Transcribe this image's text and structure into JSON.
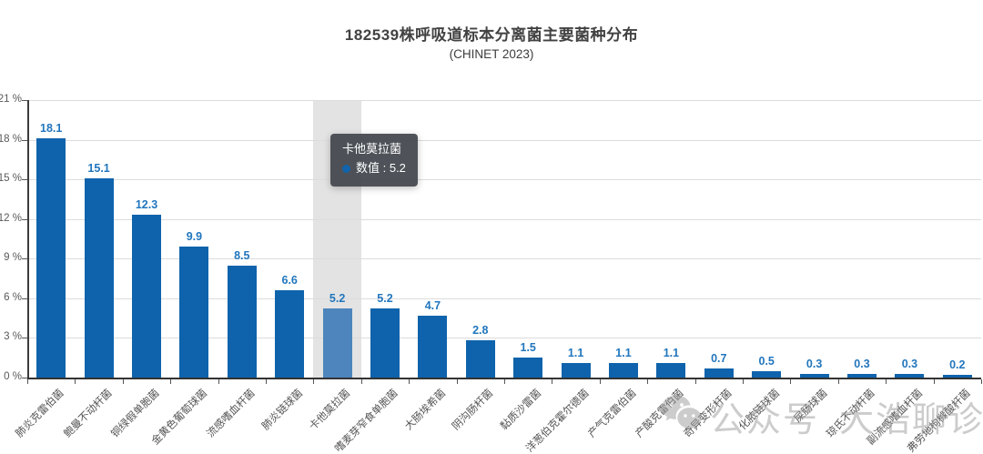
{
  "header": {
    "title": "182539株呼吸道标本分离菌主要菌种分布",
    "subtitle": "(CHINET 2023)"
  },
  "tooltip": {
    "category": "卡他莫拉菌",
    "value_line": "数值 : 5.2"
  },
  "watermark": {
    "badge": "公众号",
    "name": "大浩聊诊断"
  },
  "colors": {
    "bar": "#0f63ac",
    "bar_highlight": "#4d85bc",
    "band": "#e3e3e3",
    "value_label": "#2176bd",
    "tooltip_dot": "#1164ab",
    "grid": "#dcdcdc",
    "axis": "#333333",
    "tick_label": "#595959"
  },
  "chart_data": {
    "type": "bar",
    "title": "182539株呼吸道标本分离菌主要菌种分布",
    "subtitle": "(CHINET 2023)",
    "xlabel": "",
    "ylabel": "",
    "categories": [
      "肺炎克雷伯菌",
      "鲍曼不动杆菌",
      "铜绿假单胞菌",
      "金黄色葡萄球菌",
      "流感嗜血杆菌",
      "肺炎链球菌",
      "卡他莫拉菌",
      "嗜麦芽窄食单胞菌",
      "大肠埃希菌",
      "阴沟肠杆菌",
      "黏质沙雷菌",
      "洋葱伯克霍尔德菌",
      "产气克雷伯菌",
      "产酸克雷伯菌",
      "奇异变形杆菌",
      "化脓链球菌",
      "屎肠球菌",
      "琼氏不动杆菌",
      "副流感嗜血杆菌",
      "弗劳地枸橼酸杆菌"
    ],
    "values": [
      18.1,
      15.1,
      12.3,
      9.9,
      8.5,
      6.6,
      5.2,
      5.2,
      4.7,
      2.8,
      1.5,
      1.1,
      1.1,
      1.1,
      0.7,
      0.5,
      0.3,
      0.3,
      0.3,
      0.2
    ],
    "unit": "%",
    "ylim": [
      0,
      21
    ],
    "ytick_step": 3,
    "yticks": [
      "0 %",
      "3 %",
      "6 %",
      "9 %",
      "12 %",
      "15 %",
      "18 %",
      "21 %"
    ],
    "grid": true,
    "legend": null,
    "highlighted": {
      "index": 6,
      "category": "卡他莫拉菌",
      "value": 5.2
    }
  }
}
